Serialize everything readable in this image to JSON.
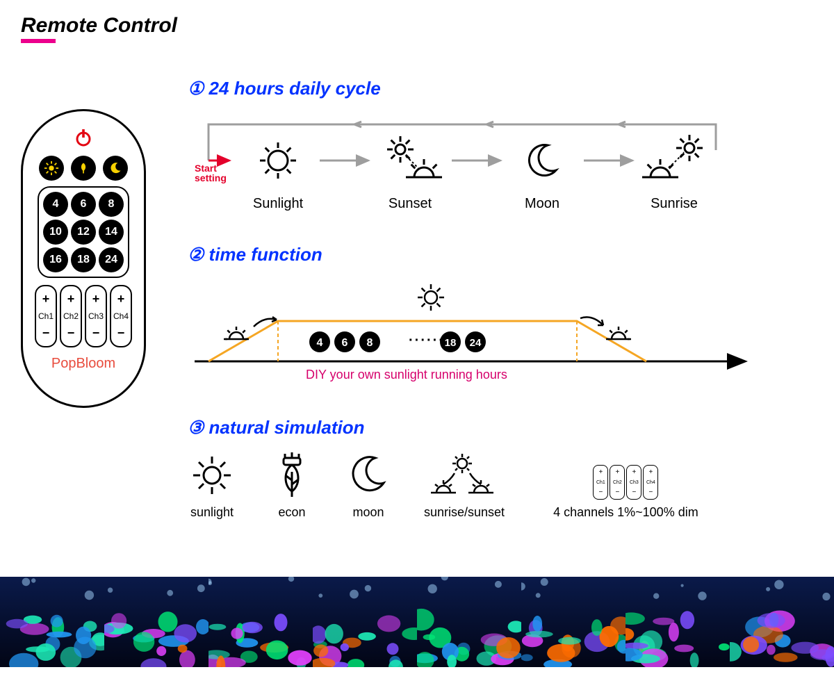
{
  "title": "Remote Control",
  "accent_color": "#ec008c",
  "heading_color": "#0433ff",
  "arrow_color": "#9e9e9e",
  "start_color": "#e4002b",
  "diy_color": "#d6006c",
  "curve_color": "#f5a623",
  "remote": {
    "brand": "PopBloom",
    "brand_color": "#e84c3d",
    "power_color": "#e30613",
    "mode_icon_color": "#f7d100",
    "numbers": [
      "4",
      "6",
      "8",
      "10",
      "12",
      "14",
      "16",
      "18",
      "24"
    ],
    "channels": [
      "Ch1",
      "Ch2",
      "Ch3",
      "Ch4"
    ]
  },
  "section1": {
    "num": "①",
    "title": "24 hours daily cycle",
    "start_label": "Start\nsetting",
    "items": [
      {
        "label": "Sunlight"
      },
      {
        "label": "Sunset"
      },
      {
        "label": "Moon"
      },
      {
        "label": "Sunrise"
      }
    ]
  },
  "section2": {
    "num": "②",
    "title": "time function",
    "chips": [
      "4",
      "6",
      "8"
    ],
    "chips2": [
      "18",
      "24"
    ],
    "dots": "······",
    "caption": "DIY your own sunlight running hours"
  },
  "section3": {
    "num": "③",
    "title": "natural simulation",
    "items": [
      {
        "label": "sunlight"
      },
      {
        "label": "econ"
      },
      {
        "label": "moon"
      },
      {
        "label": "sunrise/sunset"
      }
    ],
    "channels_label": "4 channels 1%~100% dim",
    "mini_channels": [
      "Ch1",
      "Ch2",
      "Ch3",
      "Ch4"
    ]
  },
  "reef_panels": 8,
  "reef_colors": {
    "bg_top": "#0a1a4a",
    "bg_bottom": "#020515",
    "blobs": [
      "#2196f3",
      "#00e676",
      "#ff6d00",
      "#e040fb",
      "#7c4dff",
      "#1de9b6"
    ]
  }
}
